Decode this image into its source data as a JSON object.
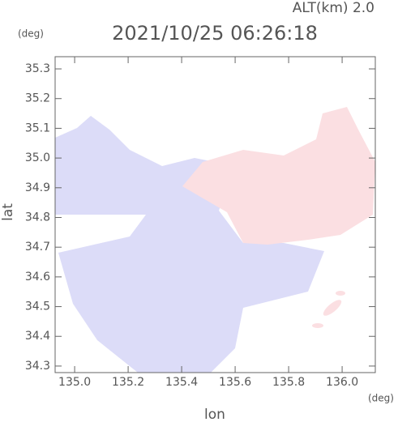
{
  "chart_data": {
    "type": "map",
    "title": "2021/10/25 06:26:18",
    "subtitle": "ALT(km) 2.0",
    "x_label": "lon",
    "y_label": "lat",
    "x_unit": "(deg)",
    "y_unit": "(deg)",
    "xlim": [
      134.927,
      136.124
    ],
    "ylim": [
      34.278,
      35.341
    ],
    "xticks": [
      {
        "value": 135.0,
        "label": "135.0"
      },
      135.2,
      135.4,
      135.6,
      135.8,
      {
        "value": 136.0,
        "label": "136.0"
      }
    ],
    "yticks": [
      34.3,
      34.4,
      34.5,
      34.6,
      34.7,
      34.8,
      34.9,
      {
        "value": 35.0,
        "label": "35.0"
      },
      35.1,
      35.2,
      35.3
    ]
  }
}
